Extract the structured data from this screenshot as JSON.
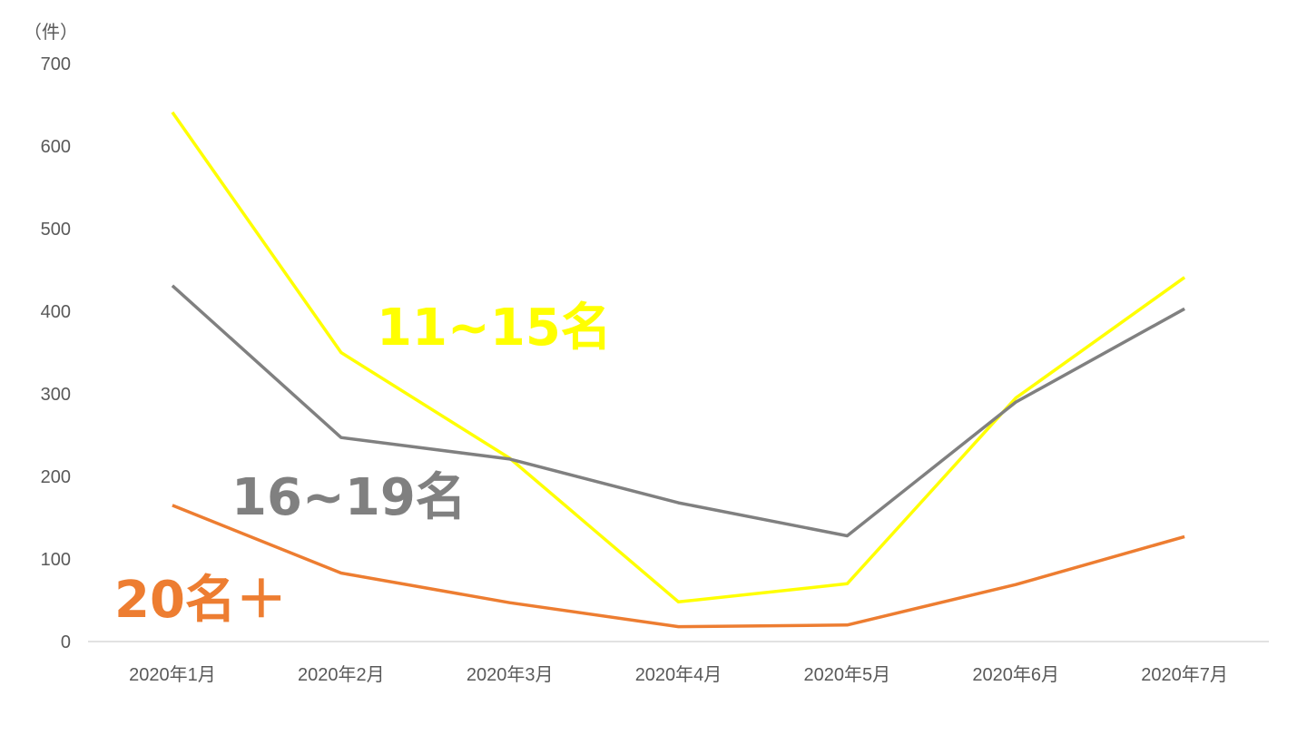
{
  "chart_data": {
    "type": "line",
    "y_unit": "（件）",
    "categories": [
      "2020年1月",
      "2020年2月",
      "2020年3月",
      "2020年4月",
      "2020年5月",
      "2020年6月",
      "2020年7月"
    ],
    "yticks": [
      "0",
      "100",
      "200",
      "300",
      "400",
      "500",
      "600",
      "700"
    ],
    "ylim": [
      0,
      700
    ],
    "grid": false,
    "legend": "none",
    "series": [
      {
        "name": "11~15名",
        "color": "#FFFF00",
        "values": [
          641,
          350,
          222,
          48,
          70,
          295,
          441
        ]
      },
      {
        "name": "16~19名",
        "color": "#808080",
        "values": [
          431,
          247,
          221,
          168,
          128,
          290,
          403
        ]
      },
      {
        "name": "20名＋",
        "color": "#ED7D31",
        "values": [
          165,
          83,
          47,
          18,
          20,
          69,
          127
        ]
      }
    ]
  }
}
